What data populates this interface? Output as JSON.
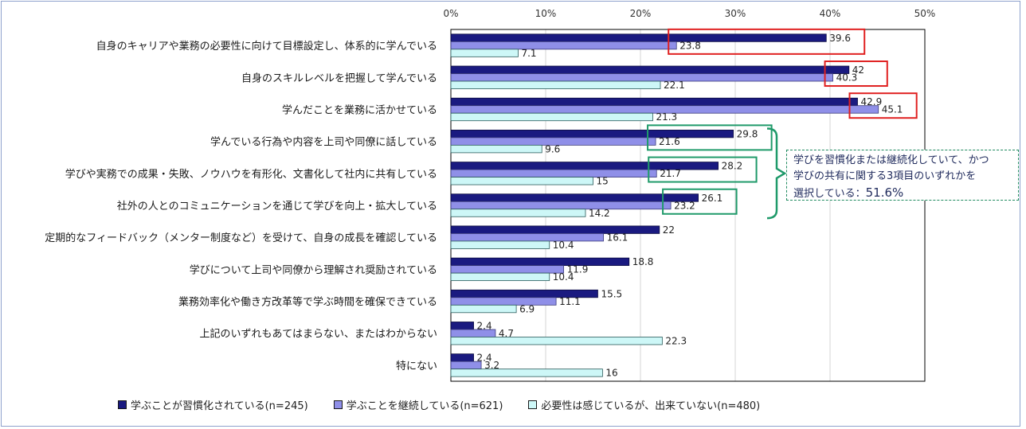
{
  "chart_data": {
    "type": "bar",
    "orientation": "horizontal",
    "xlim": [
      0,
      50
    ],
    "x_ticks": [
      "0%",
      "10%",
      "20%",
      "30%",
      "40%",
      "50%"
    ],
    "grid": true,
    "legend_position": "bottom",
    "categories": [
      "自身のキャリアや業務の必要性に向けて目標設定し、体系的に学んでいる",
      "自身のスキルレベルを把握して学んでいる",
      "学んだことを業務に活かせている",
      "学んでいる行為や内容を上司や同僚に話している",
      "学びや実務での成果・失敗、ノウハウを有形化、文書化して社内に共有している",
      "社外の人とのコミュニケーションを通じて学びを向上・拡大している",
      "定期的なフィードバック（メンター制度など）を受けて、自身の成長を確認している",
      "学びについて上司や同僚から理解され奨励されている",
      "業務効率化や働き方改革等で学ぶ時間を確保できている",
      "上記のいずれもあてはまらない、またはわからない",
      "特にない"
    ],
    "series": [
      {
        "name": "学ぶことが習慣化されている(n=245)",
        "color": "#1a1a80",
        "values": [
          39.6,
          42,
          42.9,
          29.8,
          28.2,
          26.1,
          22,
          18.8,
          15.5,
          2.4,
          2.4
        ]
      },
      {
        "name": "学ぶことを継続している(n=621)",
        "color": "#8f8fe8",
        "values": [
          23.8,
          40.3,
          45.1,
          21.6,
          21.7,
          23.2,
          16.1,
          11.9,
          11.1,
          4.7,
          3.2
        ]
      },
      {
        "name": "必要性は感じているが、出来ていない(n=480)",
        "color": "#cdf7f7",
        "values": [
          7.1,
          22.1,
          21.3,
          9.6,
          15,
          14.2,
          10.4,
          10.4,
          6.9,
          22.3,
          16
        ]
      }
    ],
    "highlights": [
      {
        "rows": [
          0,
          1,
          2
        ],
        "series": [
          0,
          1
        ],
        "color": "#e02020"
      },
      {
        "rows": [
          3,
          4,
          5
        ],
        "series": [
          0,
          1
        ],
        "color": "#1f9a6a"
      }
    ],
    "annotation": {
      "line1": "学びを習慣化または継続化していて、かつ",
      "line2": "学びの共有に関する3項目のいずれかを",
      "line3_prefix": "選択している：",
      "line3_value": "51.6%"
    }
  }
}
